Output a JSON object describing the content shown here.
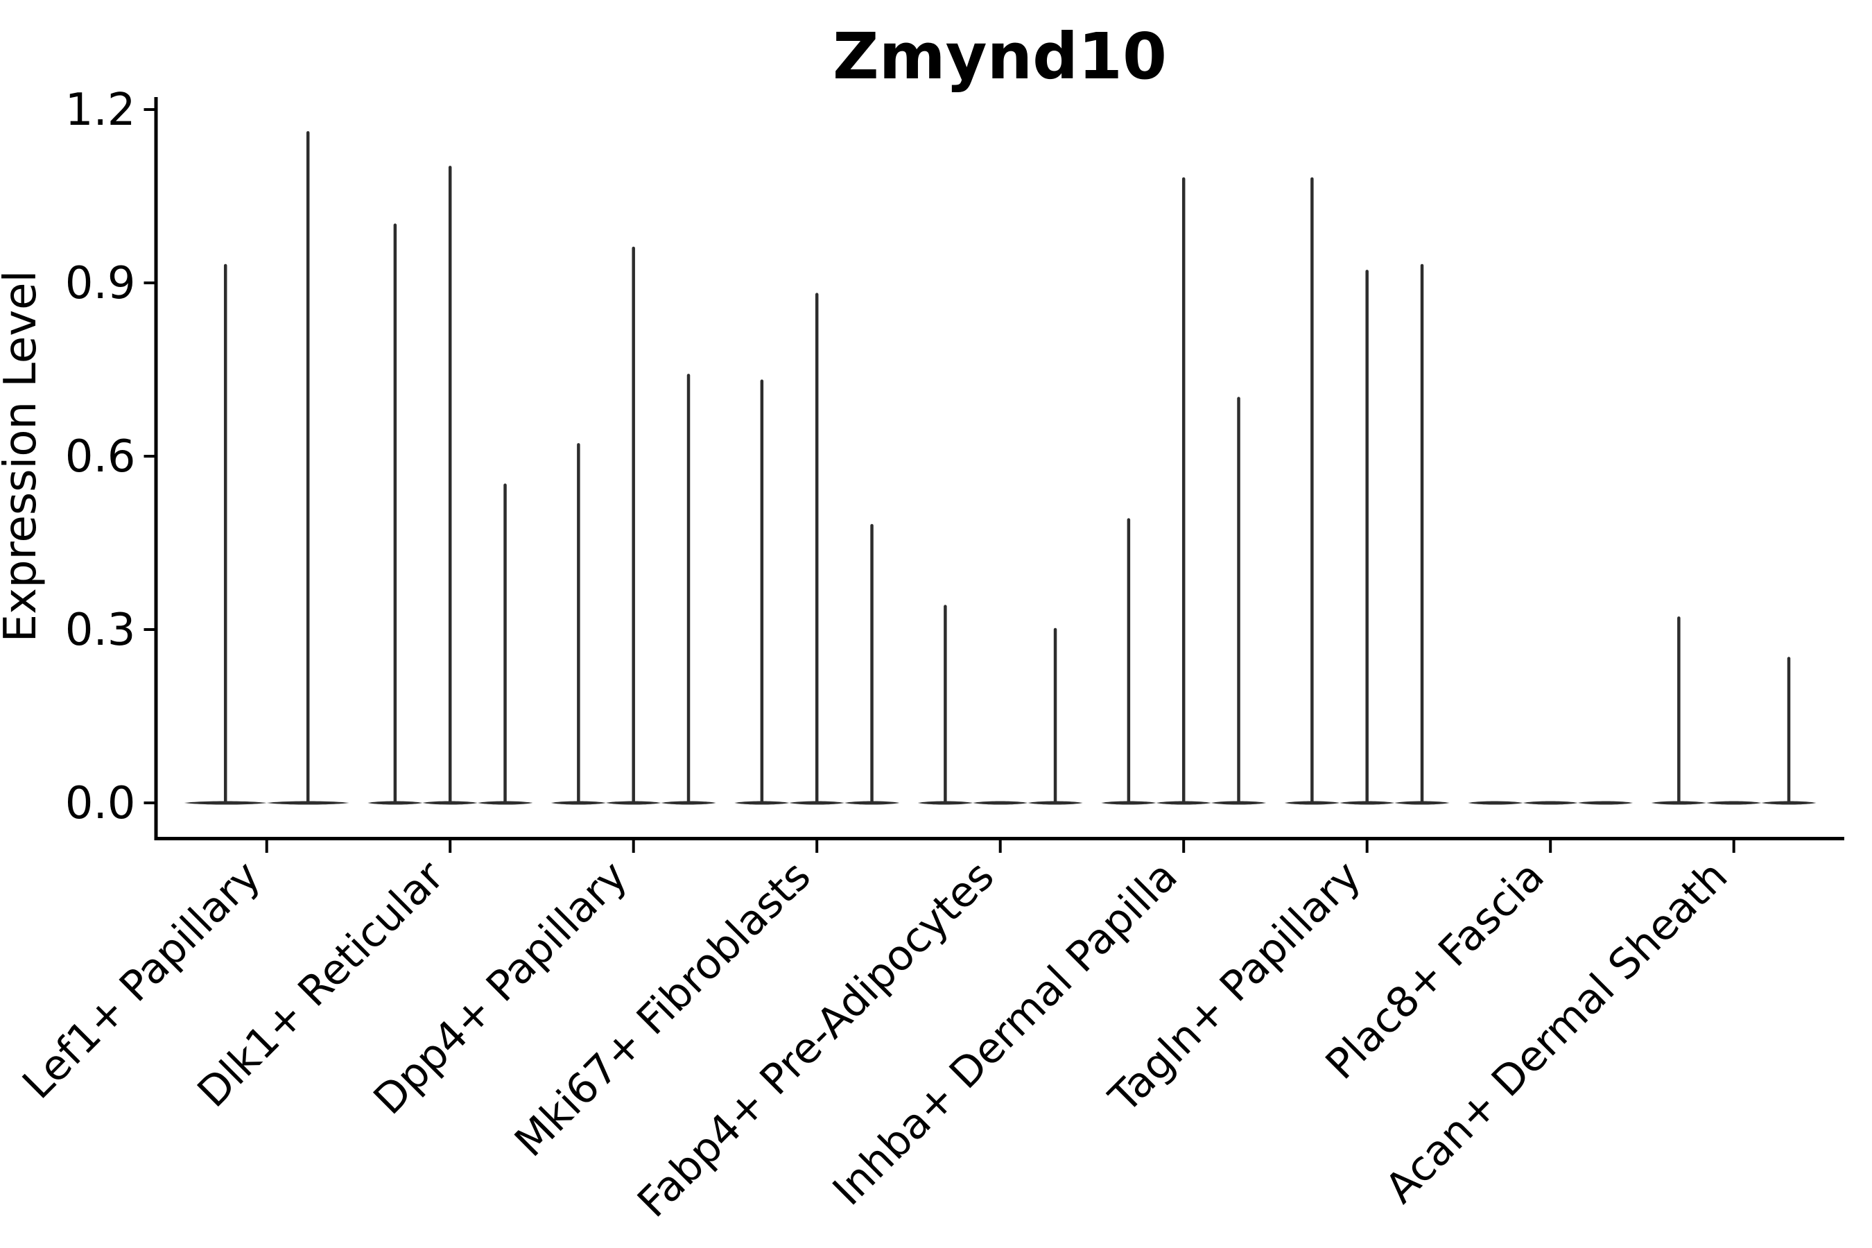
{
  "chart_data": {
    "type": "violin",
    "title": "Zmynd10",
    "xlabel": "",
    "ylabel": "Expression Level",
    "grid": false,
    "legend": null,
    "ylim": [
      0,
      1.22
    ],
    "yticks": [
      "0.0",
      "0.3",
      "0.6",
      "0.9",
      "1.2"
    ],
    "ytick_values": [
      0.0,
      0.3,
      0.6,
      0.9,
      1.2
    ],
    "categories": [
      "Lef1+ Papillary",
      "Dlk1+ Reticular",
      "Dpp4+ Papillary",
      "Mki67+ Fibroblasts",
      "Fabp4+ Pre-Adipocytes",
      "Inhba+ Dermal Papilla",
      "Tagln+ Papillary",
      "Plac8+ Fascia",
      "Acan+ Dermal Sheath"
    ],
    "series_note": "Each category shows thin violin spikes rising from a flat base at 0; values are the max expression per violin",
    "groups": [
      {
        "label": "Lef1+ Papillary",
        "violin_max_values": [
          0.93,
          1.16
        ]
      },
      {
        "label": "Dlk1+ Reticular",
        "violin_max_values": [
          1.0,
          1.1,
          0.55
        ]
      },
      {
        "label": "Dpp4+ Papillary",
        "violin_max_values": [
          0.62,
          0.96,
          0.74
        ]
      },
      {
        "label": "Mki67+ Fibroblasts",
        "violin_max_values": [
          0.73,
          0.88,
          0.48
        ]
      },
      {
        "label": "Fabp4+ Pre-Adipocytes",
        "violin_max_values": [
          0.34,
          0.0,
          0.3
        ]
      },
      {
        "label": "Inhba+ Dermal Papilla",
        "violin_max_values": [
          0.49,
          1.08,
          0.7
        ]
      },
      {
        "label": "Tagln+ Papillary",
        "violin_max_values": [
          1.08,
          0.92,
          0.93
        ]
      },
      {
        "label": "Plac8+ Fascia",
        "violin_max_values": [
          0.0,
          0.0,
          0.0
        ]
      },
      {
        "label": "Acan+ Dermal Sheath",
        "violin_max_values": [
          0.32,
          0.0,
          0.25
        ]
      }
    ],
    "colors": {
      "violin": "#2d2d2d",
      "axis": "#000000",
      "background": "#ffffff"
    }
  },
  "layout_values": {
    "title": "Zmynd10",
    "ylabel": "Expression Level"
  }
}
